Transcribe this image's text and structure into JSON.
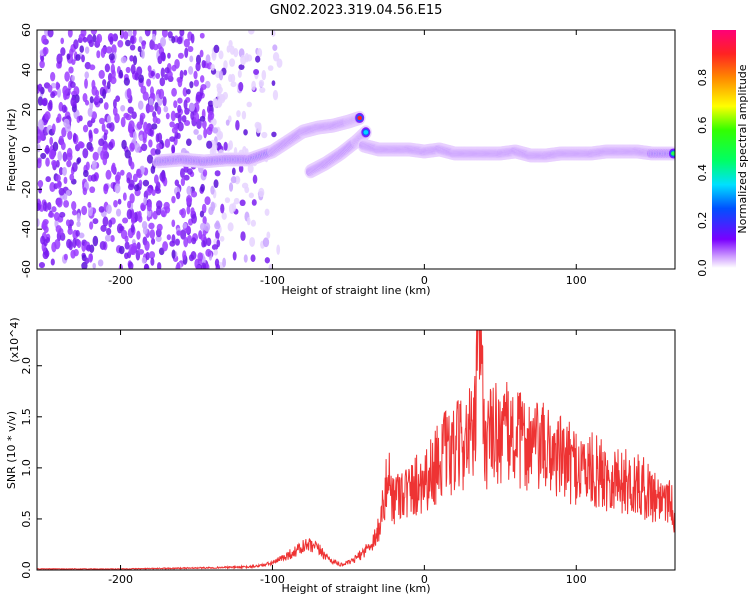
{
  "title": "GN02.2023.319.04.56.E15",
  "chart_data": [
    {
      "type": "heatmap",
      "xlabel": "Height of straight line (km)",
      "ylabel": "Frequency (Hz)",
      "xlim": [
        -255,
        165
      ],
      "ylim": [
        -60,
        60
      ],
      "x_ticks": [
        -200,
        -100,
        0,
        100
      ],
      "y_ticks": [
        -60,
        -40,
        -20,
        0,
        20,
        40,
        60
      ],
      "colorbar": {
        "label": "Normalized spectral amplitude",
        "range": [
          0,
          1
        ],
        "ticks": [
          "0.0",
          "0.2",
          "0.4",
          "0.6",
          "0.8"
        ],
        "colormap": "rainbow (white-purple-blue-cyan-green-yellow-orange-red-magenta)"
      },
      "noise_region_x": [
        -255,
        -115
      ],
      "ridges": [
        {
          "x": [
            -175,
            -160,
            -145,
            -130,
            -115,
            -100,
            -90,
            -80,
            -70,
            -60,
            -50,
            -42
          ],
          "freq": [
            -6,
            -5,
            -6,
            -5,
            -5,
            -1,
            4,
            9,
            11,
            12,
            14,
            16
          ]
        },
        {
          "x": [
            -75,
            -65,
            -55,
            -45,
            -38
          ],
          "freq": [
            -11,
            -7,
            -2,
            4,
            9
          ]
        },
        {
          "x": [
            -40,
            -30,
            -20,
            -10,
            0,
            10,
            20,
            30,
            40,
            50,
            60,
            70,
            80,
            90,
            100,
            110,
            120,
            130,
            140,
            150,
            165
          ],
          "freq": [
            2,
            0,
            0,
            0,
            -1,
            0,
            -2,
            -2,
            -2,
            -2,
            -1,
            -3,
            -3,
            -2,
            -2,
            -2,
            -1,
            -1,
            -1,
            -2,
            -2
          ]
        }
      ]
    },
    {
      "type": "line",
      "xlabel": "Height of straight line (km)",
      "ylabel": "SNR (10 * v/v)",
      "y_multiplier": "(x10^4)",
      "xlim": [
        -255,
        165
      ],
      "ylim": [
        0,
        2.35
      ],
      "x_ticks": [
        -200,
        -100,
        0,
        100
      ],
      "y_ticks": [
        "0.0",
        "0.5",
        "1.0",
        "1.5",
        "2.0"
      ],
      "color": "#ee3333",
      "series": [
        {
          "x": [
            -255,
            -200,
            -150,
            -115,
            -105,
            -98,
            -92,
            -85,
            -78,
            -72,
            -67,
            -62,
            -55,
            -48,
            -42,
            -37,
            -33,
            -29,
            -26,
            -24,
            -20,
            -15,
            -10,
            -5,
            0,
            5,
            8,
            12,
            17,
            22,
            28,
            33,
            36,
            40,
            46,
            52,
            58,
            65,
            75,
            85,
            95,
            105,
            115,
            125,
            135,
            145,
            155,
            160,
            165
          ],
          "values": [
            0.01,
            0.01,
            0.02,
            0.03,
            0.05,
            0.08,
            0.13,
            0.18,
            0.24,
            0.22,
            0.17,
            0.1,
            0.05,
            0.08,
            0.15,
            0.22,
            0.3,
            0.45,
            0.72,
            0.9,
            0.7,
            0.8,
            0.75,
            0.85,
            0.9,
            0.95,
            1.05,
            1.15,
            1.1,
            1.2,
            1.3,
            1.3,
            2.3,
            1.25,
            1.35,
            1.35,
            1.3,
            1.25,
            1.2,
            1.15,
            1.05,
            1.0,
            0.95,
            0.9,
            0.85,
            0.8,
            0.7,
            0.75,
            0.55
          ]
        }
      ]
    }
  ]
}
